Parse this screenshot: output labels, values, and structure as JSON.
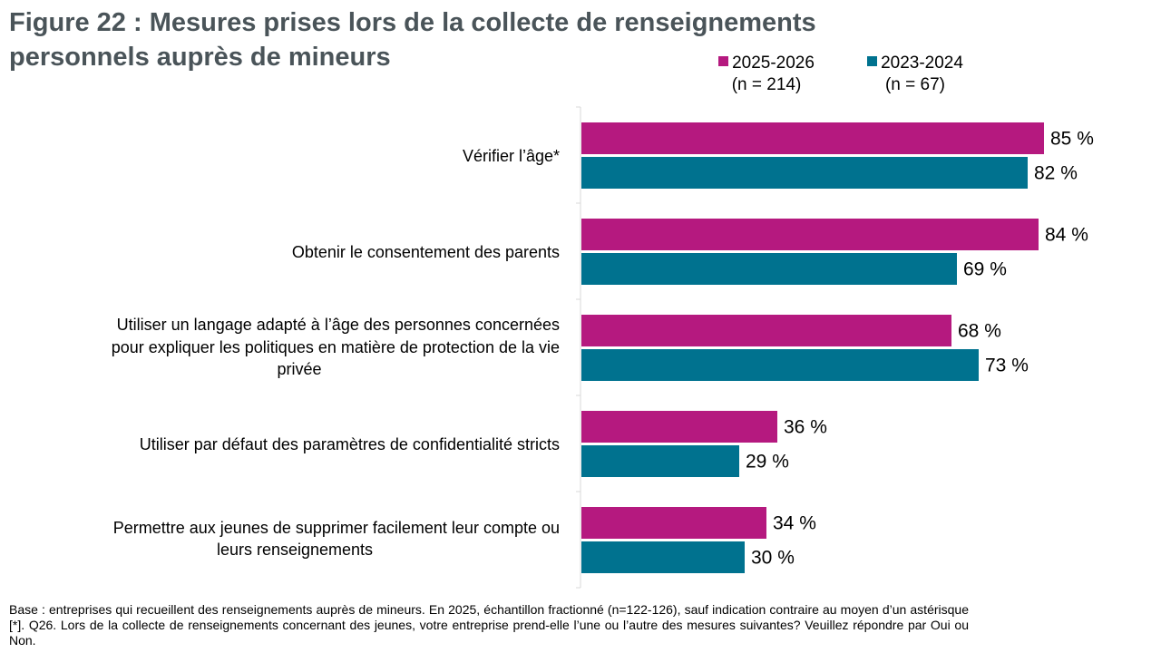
{
  "title": "Figure 22 : Mesures prises lors de la collecte de renseignements personnels auprès de mineurs",
  "legend": [
    {
      "label": "2025-2026",
      "sub": "(n = 214)",
      "color": "#b5197f"
    },
    {
      "label": "2023-2024",
      "sub": "(n = 67)",
      "color": "#00728f"
    }
  ],
  "chart_data": {
    "type": "bar",
    "orientation": "horizontal",
    "categories": [
      "Vérifier l’âge*",
      "Obtenir le consentement des parents",
      "Utiliser un langage adapté à l’âge des personnes concernées pour expliquer les politiques en matière de protection de la vie privée",
      "Utiliser par défaut des paramètres de confidentialité stricts",
      "Permettre aux jeunes de supprimer facilement leur compte ou leurs renseignements"
    ],
    "series": [
      {
        "name": "2025-2026",
        "values": [
          85,
          84,
          68,
          36,
          34
        ],
        "labels": [
          "85 %",
          "84 %",
          "68 %",
          "36 %",
          "34 %"
        ]
      },
      {
        "name": "2023-2024",
        "values": [
          82,
          69,
          73,
          29,
          30
        ],
        "labels": [
          "82 %",
          "69 %",
          "73 %",
          "29 %",
          "30 %"
        ]
      }
    ],
    "xlim": [
      0,
      100
    ],
    "grid": false,
    "legend_position": "top-right",
    "value_suffix": " %"
  },
  "footnote": "Base : entreprises qui recueillent des renseignements auprès de mineurs. En 2025, échantillon fractionné (n=122-126), sauf indication contraire au moyen d’un astérisque [*]. Q26. Lors de la collecte de renseignements concernant des jeunes, votre entreprise prend-elle l’une ou l’autre des mesures suivantes? Veuillez répondre par Oui ou Non."
}
